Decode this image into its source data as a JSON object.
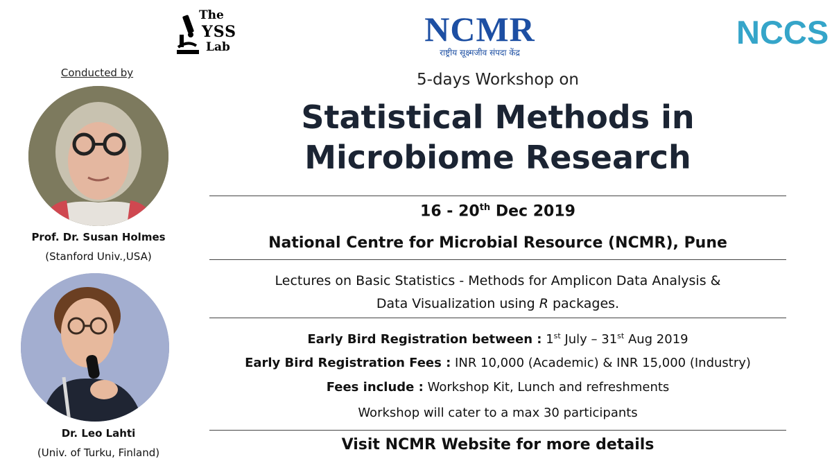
{
  "logos": {
    "yss_line1": "The",
    "yss_line2": "YSS",
    "yss_line3": "Lab",
    "ncmr_main": "NCMR",
    "ncmr_sub": "राष्ट्रीय सूक्ष्मजीव संपदा केंद्र",
    "nccs": "NCCS"
  },
  "speakers": {
    "heading": "Conducted by",
    "items": [
      {
        "name": "Prof. Dr. Susan  Holmes",
        "affiliation": "(Stanford Univ.,USA)"
      },
      {
        "name": "Dr. Leo Lahti",
        "affiliation": "(Univ. of Turku, Finland)"
      }
    ]
  },
  "event": {
    "subtitle": "5-days Workshop on",
    "title_line1": "Statistical Methods in",
    "title_line2": "Microbiome Research",
    "date_start": "16 - 20",
    "date_sup": "th",
    "date_end": " Dec 2019",
    "venue": "National Centre for Microbial Resource (NCMR), Pune",
    "lectures_line1": "Lectures on Basic Statistics - Methods for Amplicon Data Analysis &",
    "lectures_line2_pre": "Data Visualization using ",
    "lectures_line2_em": "R",
    "lectures_line2_post": " packages."
  },
  "registration": {
    "period_label": "Early Bird Registration between  :",
    "period_from_num": " 1",
    "period_from_sup": "st",
    "period_from_rest": " July – 31",
    "period_to_sup": "st",
    "period_to_rest": " Aug 2019",
    "fees_label": "Early Bird Registration Fees :",
    "fees_value": " INR 10,000 (Academic) & INR 15,000 (Industry)",
    "includes_label": "Fees include :",
    "includes_value": " Workshop Kit, Lunch and refreshments",
    "capacity": "Workshop will cater to a max 30 participants"
  },
  "footer": {
    "visit": "Visit NCMR Website for more details"
  }
}
